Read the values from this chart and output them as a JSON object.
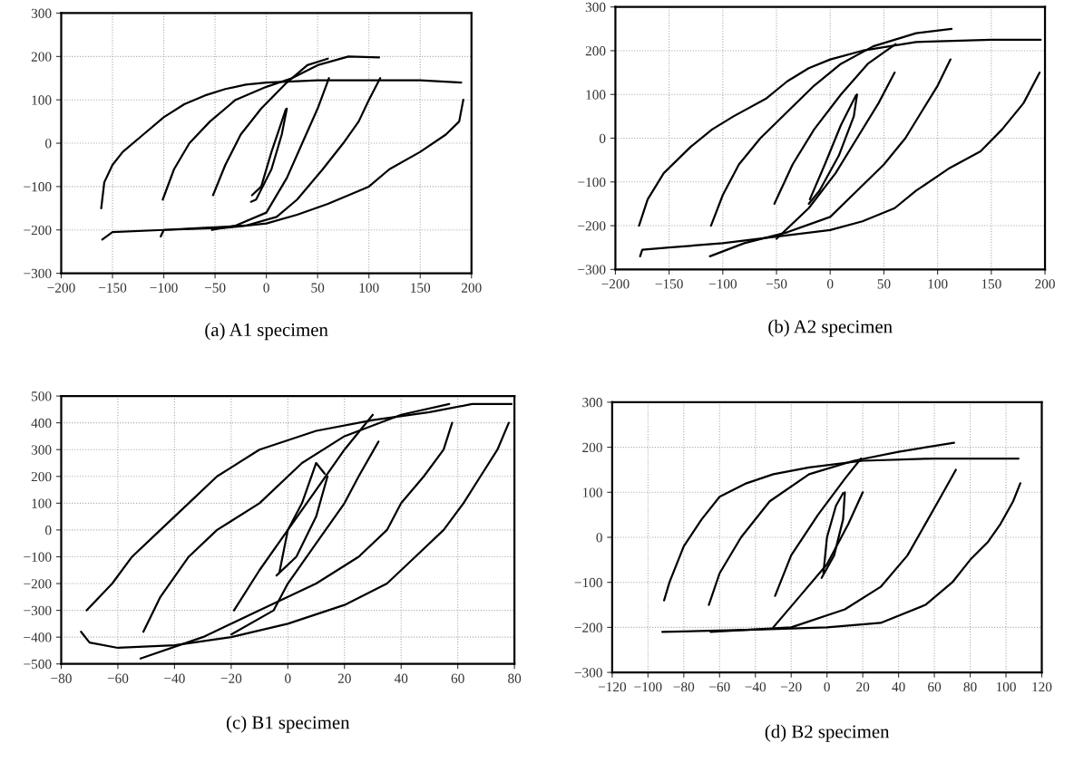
{
  "chart_data": [
    {
      "type": "line",
      "title": "(a) A1 specimen",
      "xlim": [
        -200,
        200
      ],
      "ylim": [
        -300,
        300
      ],
      "xticks": [
        -200,
        -150,
        -100,
        -50,
        0,
        50,
        100,
        150,
        200
      ],
      "yticks": [
        -300,
        -200,
        -100,
        0,
        100,
        200,
        300
      ],
      "grid": true,
      "series": [
        {
          "color": "#000000",
          "x": [
            -160,
            -150,
            -100,
            -40,
            0,
            30,
            60,
            100,
            120,
            150,
            175,
            188,
            192
          ],
          "values": [
            -222,
            -205,
            -200,
            -195,
            -185,
            -165,
            -140,
            -100,
            -60,
            -20,
            20,
            50,
            100
          ]
        },
        {
          "color": "#000000",
          "x": [
            -161,
            -158,
            -150,
            -140,
            -120,
            -100,
            -80,
            -60,
            -40,
            -20,
            0,
            50,
            100,
            150,
            190
          ],
          "values": [
            -150,
            -90,
            -50,
            -20,
            20,
            60,
            90,
            110,
            125,
            135,
            140,
            145,
            145,
            145,
            140
          ]
        },
        {
          "color": "#000000",
          "x": [
            -103,
            -100,
            -60,
            -20,
            10,
            30,
            55,
            75,
            90,
            100,
            111
          ],
          "values": [
            -215,
            -200,
            -195,
            -190,
            -170,
            -130,
            -60,
            0,
            50,
            100,
            150
          ]
        },
        {
          "color": "#000000",
          "x": [
            -101,
            -90,
            -75,
            -55,
            -30,
            0,
            25,
            50,
            80,
            110
          ],
          "values": [
            -130,
            -60,
            0,
            50,
            100,
            130,
            150,
            180,
            200,
            198
          ]
        },
        {
          "color": "#000000",
          "x": [
            -53,
            -30,
            0,
            20,
            35,
            50,
            61
          ],
          "values": [
            -200,
            -190,
            -160,
            -80,
            0,
            80,
            150
          ]
        },
        {
          "color": "#000000",
          "x": [
            -52,
            -40,
            -25,
            -5,
            20,
            40,
            60
          ],
          "values": [
            -120,
            -50,
            20,
            80,
            140,
            180,
            195
          ]
        },
        {
          "color": "#000000",
          "x": [
            -15,
            -10,
            5,
            15,
            20
          ],
          "values": [
            -135,
            -130,
            -60,
            20,
            80
          ]
        },
        {
          "color": "#000000",
          "x": [
            -14,
            -5,
            5,
            15,
            19
          ],
          "values": [
            -120,
            -100,
            -20,
            50,
            78
          ]
        }
      ]
    },
    {
      "type": "line",
      "title": "(b) A2 specimen",
      "xlim": [
        -200,
        200
      ],
      "ylim": [
        -300,
        300
      ],
      "xticks": [
        -200,
        -150,
        -100,
        -50,
        0,
        50,
        100,
        150,
        200
      ],
      "yticks": [
        -300,
        -200,
        -100,
        0,
        100,
        200,
        300
      ],
      "grid": true,
      "series": [
        {
          "color": "#000000",
          "x": [
            -177,
            -175,
            -150,
            -100,
            -50,
            0,
            30,
            60,
            80,
            110,
            140,
            160,
            180,
            195
          ],
          "values": [
            -270,
            -255,
            -250,
            -240,
            -225,
            -210,
            -190,
            -160,
            -120,
            -70,
            -30,
            20,
            80,
            150
          ]
        },
        {
          "color": "#000000",
          "x": [
            -178,
            -170,
            -155,
            -130,
            -110,
            -90,
            -60,
            -40,
            -20,
            0,
            30,
            80,
            150,
            196
          ],
          "values": [
            -200,
            -140,
            -80,
            -20,
            20,
            50,
            90,
            130,
            160,
            180,
            200,
            220,
            225,
            225
          ]
        },
        {
          "color": "#000000",
          "x": [
            -112,
            -80,
            -40,
            0,
            25,
            50,
            70,
            85,
            100,
            112
          ],
          "values": [
            -270,
            -240,
            -215,
            -180,
            -120,
            -60,
            0,
            60,
            120,
            180
          ]
        },
        {
          "color": "#000000",
          "x": [
            -111,
            -100,
            -85,
            -65,
            -40,
            -15,
            10,
            40,
            80,
            113
          ],
          "values": [
            -200,
            -130,
            -60,
            0,
            60,
            120,
            170,
            210,
            240,
            250
          ]
        },
        {
          "color": "#000000",
          "x": [
            -50,
            -20,
            5,
            25,
            45,
            60
          ],
          "values": [
            -230,
            -160,
            -80,
            0,
            80,
            150
          ]
        },
        {
          "color": "#000000",
          "x": [
            -52,
            -35,
            -15,
            10,
            35,
            61
          ],
          "values": [
            -150,
            -60,
            20,
            100,
            170,
            215
          ]
        },
        {
          "color": "#000000",
          "x": [
            -20,
            -10,
            8,
            22,
            25
          ],
          "values": [
            -150,
            -120,
            -40,
            50,
            100
          ]
        },
        {
          "color": "#000000",
          "x": [
            -19,
            -5,
            10,
            24
          ],
          "values": [
            -140,
            -60,
            30,
            98
          ]
        }
      ]
    },
    {
      "type": "line",
      "title": "(c) B1 specimen",
      "xlim": [
        -80,
        80
      ],
      "ylim": [
        -500,
        500
      ],
      "xticks": [
        -80,
        -60,
        -40,
        -20,
        0,
        20,
        40,
        60,
        80
      ],
      "yticks": [
        -500,
        -400,
        -300,
        -200,
        -100,
        0,
        100,
        200,
        300,
        400,
        500
      ],
      "grid": true,
      "series": [
        {
          "color": "#000000",
          "x": [
            -73,
            -70,
            -60,
            -40,
            -20,
            0,
            20,
            35,
            45,
            55,
            62,
            68,
            74,
            78
          ],
          "values": [
            -380,
            -420,
            -440,
            -430,
            -400,
            -350,
            -280,
            -200,
            -100,
            0,
            100,
            200,
            300,
            400
          ]
        },
        {
          "color": "#000000",
          "x": [
            -71,
            -62,
            -55,
            -45,
            -35,
            -25,
            -10,
            10,
            30,
            50,
            65,
            79
          ],
          "values": [
            -300,
            -200,
            -100,
            0,
            100,
            200,
            300,
            370,
            410,
            440,
            470,
            470
          ]
        },
        {
          "color": "#000000",
          "x": [
            -52,
            -30,
            -10,
            10,
            25,
            35,
            40,
            48,
            55,
            58
          ],
          "values": [
            -480,
            -400,
            -300,
            -200,
            -100,
            0,
            100,
            200,
            300,
            400
          ]
        },
        {
          "color": "#000000",
          "x": [
            -51,
            -45,
            -35,
            -25,
            -10,
            5,
            20,
            40,
            57
          ],
          "values": [
            -380,
            -250,
            -100,
            0,
            100,
            250,
            350,
            430,
            470
          ]
        },
        {
          "color": "#000000",
          "x": [
            -20,
            -5,
            0,
            10,
            20,
            25,
            32
          ],
          "values": [
            -390,
            -300,
            -200,
            -50,
            100,
            200,
            330
          ]
        },
        {
          "color": "#000000",
          "x": [
            -19,
            -10,
            0,
            10,
            20,
            30
          ],
          "values": [
            -300,
            -150,
            0,
            150,
            300,
            430
          ]
        },
        {
          "color": "#000000",
          "x": [
            -4,
            3,
            10,
            14
          ],
          "values": [
            -170,
            -100,
            50,
            200
          ]
        },
        {
          "color": "#000000",
          "x": [
            -3,
            0,
            5,
            10,
            13
          ],
          "values": [
            -160,
            0,
            100,
            250,
            210
          ]
        }
      ]
    },
    {
      "type": "line",
      "title": "(d) B2 specimen",
      "xlim": [
        -120,
        120
      ],
      "ylim": [
        -300,
        300
      ],
      "xticks": [
        -120,
        -100,
        -80,
        -60,
        -40,
        -20,
        0,
        20,
        40,
        60,
        80,
        100,
        120
      ],
      "yticks": [
        -300,
        -200,
        -100,
        0,
        100,
        200,
        300
      ],
      "grid": true,
      "series": [
        {
          "color": "#000000",
          "x": [
            -92,
            -40,
            0,
            30,
            55,
            70,
            80,
            90,
            97,
            104,
            108
          ],
          "values": [
            -210,
            -205,
            -200,
            -190,
            -150,
            -100,
            -50,
            -10,
            30,
            80,
            120
          ]
        },
        {
          "color": "#000000",
          "x": [
            -91,
            -88,
            -80,
            -70,
            -60,
            -45,
            -30,
            -10,
            20,
            60,
            107
          ],
          "values": [
            -140,
            -100,
            -20,
            40,
            90,
            120,
            140,
            155,
            170,
            175,
            175
          ]
        },
        {
          "color": "#000000",
          "x": [
            -65,
            -20,
            10,
            30,
            45,
            55,
            65,
            72
          ],
          "values": [
            -210,
            -200,
            -160,
            -110,
            -40,
            30,
            100,
            150
          ]
        },
        {
          "color": "#000000",
          "x": [
            -66,
            -60,
            -48,
            -32,
            -10,
            15,
            40,
            71
          ],
          "values": [
            -150,
            -80,
            0,
            80,
            140,
            170,
            190,
            210
          ]
        },
        {
          "color": "#000000",
          "x": [
            -30,
            -15,
            0,
            12,
            20
          ],
          "values": [
            -200,
            -130,
            -60,
            30,
            100
          ]
        },
        {
          "color": "#000000",
          "x": [
            -29,
            -20,
            -5,
            10,
            19
          ],
          "values": [
            -130,
            -40,
            50,
            130,
            175
          ]
        },
        {
          "color": "#000000",
          "x": [
            -3,
            4,
            9,
            10
          ],
          "values": [
            -90,
            -40,
            40,
            100
          ]
        },
        {
          "color": "#000000",
          "x": [
            -2,
            0,
            5,
            9
          ],
          "values": [
            -80,
            0,
            70,
            98
          ]
        }
      ]
    }
  ]
}
